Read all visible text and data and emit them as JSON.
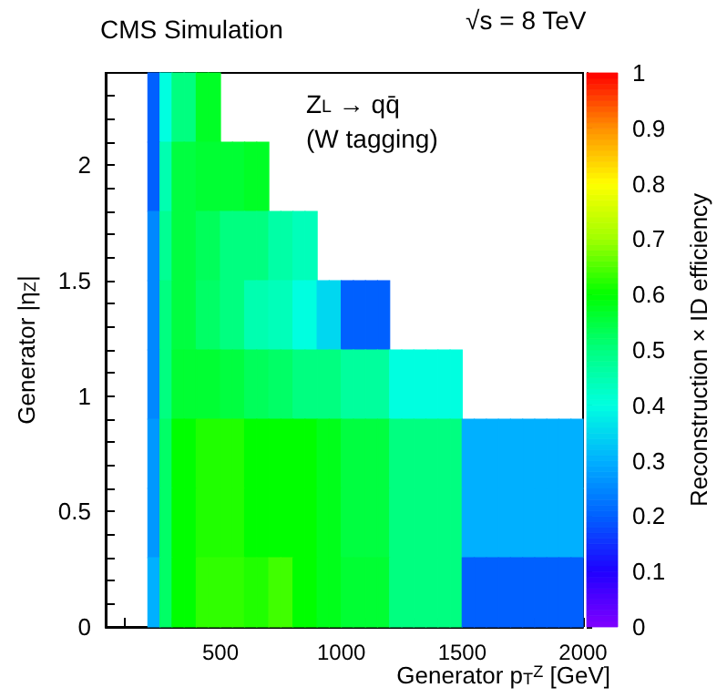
{
  "chart_data": {
    "type": "heatmap",
    "title": "CMS Simulation",
    "annotations": [
      "√s = 8 TeV",
      "Z$_{L}$ → qq̄",
      "(W tagging)"
    ],
    "xlabel": "Generator p$_{T}$$^{Z}$ [GeV]",
    "ylabel": "Generator |η$_{Z}$|",
    "clabel": "Reconstruction × ID efficiency",
    "x": [
      225,
      275,
      325,
      375,
      425,
      475,
      525,
      575,
      625,
      675,
      725,
      775,
      825,
      875,
      925,
      975,
      1025,
      1075,
      1125,
      1175,
      1225,
      1275,
      1325,
      1375,
      1425,
      1475,
      1525,
      1575,
      1625,
      1675,
      1725,
      1775,
      1825,
      1875,
      1925,
      1975
    ],
    "y": [
      2.25,
      1.95,
      1.65,
      1.35,
      1.05,
      0.75,
      0.45,
      0.15
    ],
    "cells": [
      [
        0.2,
        0.4,
        0.5,
        0.5,
        0.57,
        0.57,
        null,
        null,
        null,
        null,
        null,
        null,
        null,
        null,
        null,
        null,
        null,
        null,
        null,
        null,
        null,
        null,
        null,
        null,
        null,
        null,
        null,
        null,
        null,
        null,
        null,
        null,
        null,
        null,
        null,
        null
      ],
      [
        0.2,
        0.45,
        0.55,
        0.55,
        0.56,
        0.56,
        0.56,
        0.56,
        0.57,
        0.57,
        null,
        null,
        null,
        null,
        null,
        null,
        null,
        null,
        null,
        null,
        null,
        null,
        null,
        null,
        null,
        null,
        null,
        null,
        null,
        null,
        null,
        null,
        null,
        null,
        null,
        null
      ],
      [
        0.25,
        0.48,
        0.55,
        0.55,
        0.53,
        0.53,
        0.5,
        0.5,
        0.5,
        0.5,
        0.46,
        0.46,
        0.44,
        0.44,
        null,
        null,
        null,
        null,
        null,
        null,
        null,
        null,
        null,
        null,
        null,
        null,
        null,
        null,
        null,
        null,
        null,
        null,
        null,
        null,
        null,
        null
      ],
      [
        0.25,
        0.5,
        0.55,
        0.55,
        0.52,
        0.52,
        0.5,
        0.5,
        0.45,
        0.45,
        0.44,
        0.44,
        0.4,
        0.4,
        0.35,
        0.35,
        0.2,
        0.2,
        0.2,
        0.2,
        null,
        null,
        null,
        null,
        null,
        null,
        null,
        null,
        null,
        null,
        null,
        null,
        null,
        null,
        null,
        null
      ],
      [
        0.25,
        0.5,
        0.56,
        0.56,
        0.56,
        0.56,
        0.55,
        0.55,
        0.53,
        0.53,
        0.52,
        0.52,
        0.5,
        0.5,
        0.5,
        0.5,
        0.47,
        0.47,
        0.47,
        0.47,
        0.4,
        0.4,
        0.4,
        0.4,
        0.4,
        0.4,
        null,
        null,
        null,
        null,
        null,
        null,
        null,
        null,
        null,
        null
      ],
      [
        0.27,
        0.52,
        0.6,
        0.6,
        0.62,
        0.62,
        0.62,
        0.62,
        0.6,
        0.6,
        0.6,
        0.6,
        0.6,
        0.6,
        0.58,
        0.58,
        0.55,
        0.55,
        0.55,
        0.55,
        0.5,
        0.5,
        0.5,
        0.5,
        0.5,
        0.5,
        0.3,
        0.3,
        0.3,
        0.3,
        0.3,
        0.3,
        0.3,
        0.3,
        0.3,
        0.3
      ],
      [
        0.27,
        0.52,
        0.6,
        0.6,
        0.62,
        0.62,
        0.62,
        0.62,
        0.6,
        0.6,
        0.6,
        0.6,
        0.6,
        0.6,
        0.58,
        0.58,
        0.55,
        0.55,
        0.55,
        0.55,
        0.5,
        0.5,
        0.5,
        0.5,
        0.5,
        0.5,
        0.3,
        0.3,
        0.3,
        0.3,
        0.3,
        0.3,
        0.3,
        0.3,
        0.3,
        0.3
      ],
      [
        0.3,
        0.52,
        0.6,
        0.6,
        0.63,
        0.63,
        0.63,
        0.63,
        0.62,
        0.62,
        0.64,
        0.64,
        0.6,
        0.6,
        0.58,
        0.58,
        0.56,
        0.56,
        0.56,
        0.56,
        0.5,
        0.5,
        0.5,
        0.5,
        0.5,
        0.5,
        0.2,
        0.2,
        0.2,
        0.2,
        0.2,
        0.2,
        0.2,
        0.2,
        0.2,
        0.2
      ]
    ],
    "xlim": [
      25,
      2000
    ],
    "xticks": [
      {
        "value": 100,
        "label": null
      },
      {
        "value": 200,
        "label": null
      },
      {
        "value": 300,
        "label": null
      },
      {
        "value": 400,
        "label": null
      },
      500,
      {
        "value": 600,
        "label": null
      },
      {
        "value": 700,
        "label": null
      },
      {
        "value": 800,
        "label": null
      },
      {
        "value": 900,
        "label": null
      },
      1000,
      {
        "value": 1100,
        "label": null
      },
      {
        "value": 1200,
        "label": null
      },
      {
        "value": 1300,
        "label": null
      },
      {
        "value": 1400,
        "label": null
      },
      1500,
      {
        "value": 1600,
        "label": null
      },
      {
        "value": 1700,
        "label": null
      },
      {
        "value": 1800,
        "label": null
      },
      {
        "value": 1900,
        "label": null
      },
      2000
    ],
    "ylim": [
      0,
      2.4
    ],
    "yticks": [
      0,
      {
        "value": 0.1,
        "label": null
      },
      {
        "value": 0.2,
        "label": null
      },
      {
        "value": 0.3,
        "label": null
      },
      {
        "value": 0.4,
        "label": null
      },
      0.5,
      {
        "value": 0.6,
        "label": null
      },
      {
        "value": 0.7,
        "label": null
      },
      {
        "value": 0.8,
        "label": null
      },
      {
        "value": 0.9,
        "label": null
      },
      1,
      {
        "value": 1.1,
        "label": null
      },
      {
        "value": 1.2,
        "label": null
      },
      {
        "value": 1.3,
        "label": null
      },
      {
        "value": 1.4,
        "label": null
      },
      1.5,
      {
        "value": 1.6,
        "label": null
      },
      {
        "value": 1.7,
        "label": null
      },
      {
        "value": 1.8,
        "label": null
      },
      {
        "value": 1.9,
        "label": null
      },
      2,
      {
        "value": 2.1,
        "label": null
      },
      {
        "value": 2.2,
        "label": null
      },
      {
        "value": 2.3,
        "label": null
      }
    ],
    "clim": [
      0,
      1
    ],
    "cticks": [
      0,
      0.1,
      0.2,
      0.3,
      0.4,
      0.5,
      0.6,
      0.7,
      0.8,
      0.9,
      1
    ]
  }
}
